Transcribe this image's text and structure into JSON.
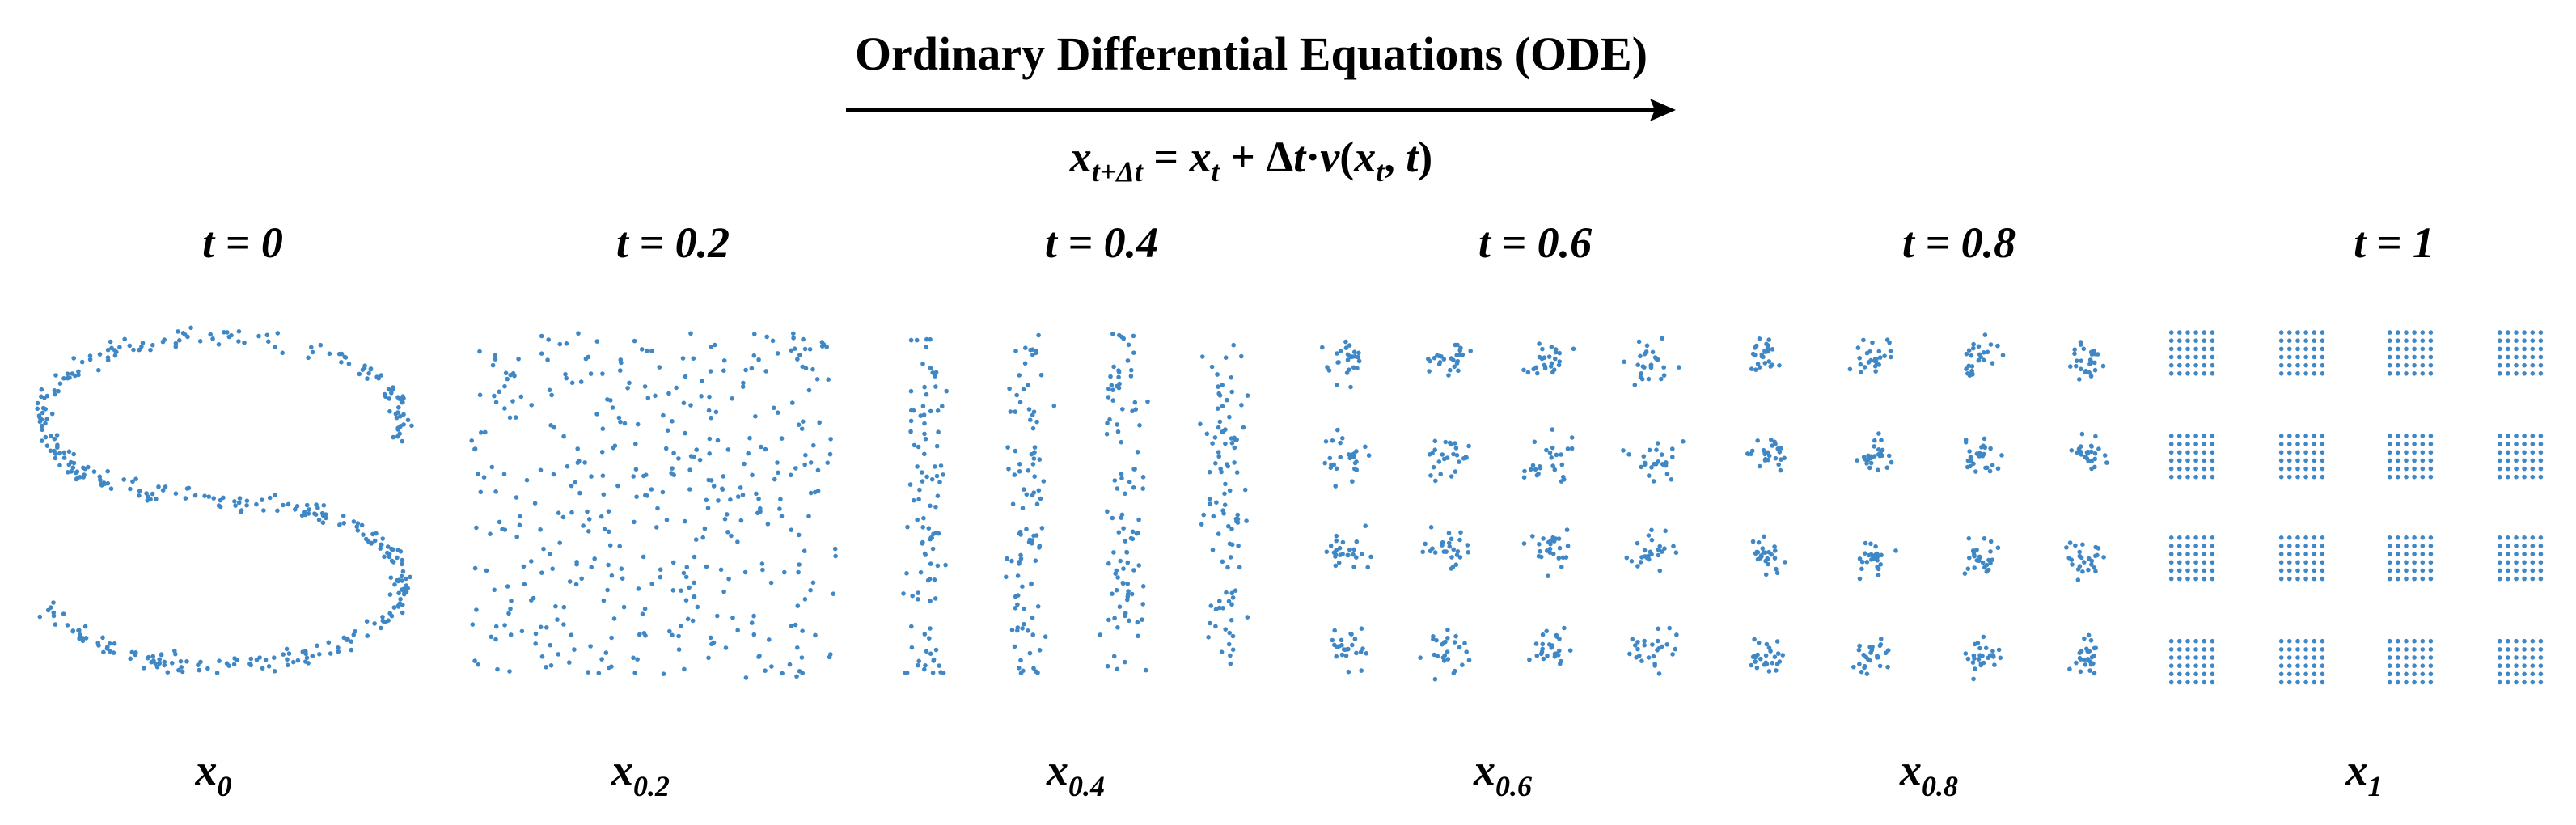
{
  "header": {
    "title": "Ordinary Differential Equations (ODE)",
    "equation": [
      {
        "text": "x",
        "sub": "t+Δt"
      },
      {
        "text": " = "
      },
      {
        "text": "x",
        "sub": "t"
      },
      {
        "text": " + Δ"
      },
      {
        "text": "t",
        "italic": true
      },
      {
        "text": "·"
      },
      {
        "text": "v",
        "italic": true
      },
      {
        "text": "("
      },
      {
        "text": "x",
        "sub": "t"
      },
      {
        "text": ", "
      },
      {
        "text": "t",
        "italic": true
      },
      {
        "text": ")"
      }
    ]
  },
  "panels": [
    {
      "time_label": "t = 0",
      "state_var": "x",
      "state_sub": "0"
    },
    {
      "time_label": "t = 0.2",
      "state_var": "x",
      "state_sub": "0.2"
    },
    {
      "time_label": "t = 0.4",
      "state_var": "x",
      "state_sub": "0.4"
    },
    {
      "time_label": "t = 0.6",
      "state_var": "x",
      "state_sub": "0.6"
    },
    {
      "time_label": "t = 0.8",
      "state_var": "x",
      "state_sub": "0.8"
    },
    {
      "time_label": "t = 1",
      "state_var": "x",
      "state_sub": "1"
    }
  ]
}
